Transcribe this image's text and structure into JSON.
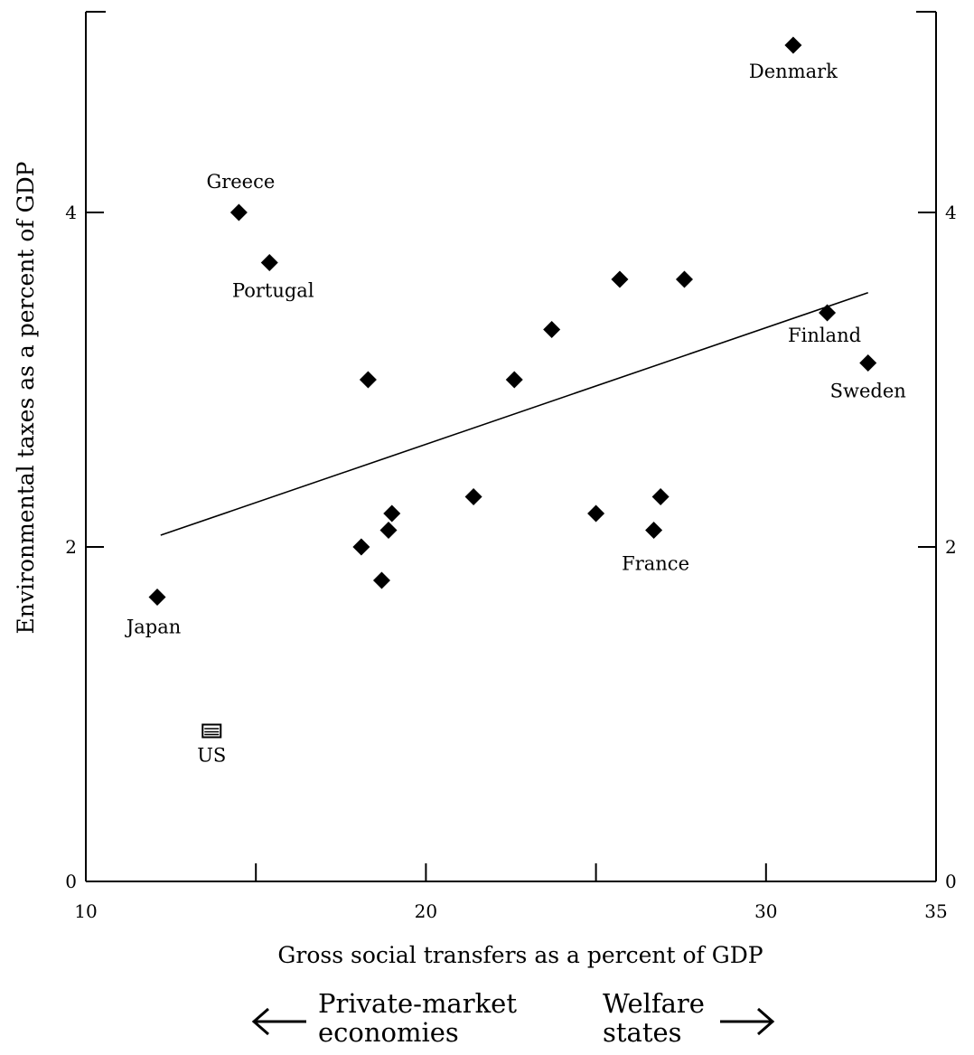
{
  "chart_data": {
    "type": "scatter",
    "title": "",
    "xlabel": "Gross social transfers as a percent of GDP",
    "ylabel": "Environmental taxes as a percent of GDP",
    "xlim": [
      10,
      35
    ],
    "ylim": [
      0,
      5.2
    ],
    "x_ticks": [
      10,
      20,
      30,
      35
    ],
    "x_minor_ticks": [
      15,
      25
    ],
    "y_ticks": [
      0,
      2,
      4
    ],
    "points": [
      {
        "x": 12.1,
        "y": 1.7,
        "label": "Japan"
      },
      {
        "x": 13.7,
        "y": 0.9,
        "label": "US"
      },
      {
        "x": 14.5,
        "y": 4.0,
        "label": "Greece"
      },
      {
        "x": 15.4,
        "y": 3.7,
        "label": "Portugal"
      },
      {
        "x": 18.1,
        "y": 2.0,
        "label": ""
      },
      {
        "x": 18.3,
        "y": 3.0,
        "label": ""
      },
      {
        "x": 18.7,
        "y": 1.8,
        "label": ""
      },
      {
        "x": 18.9,
        "y": 2.1,
        "label": ""
      },
      {
        "x": 19.0,
        "y": 2.2,
        "label": ""
      },
      {
        "x": 21.4,
        "y": 2.3,
        "label": ""
      },
      {
        "x": 22.6,
        "y": 3.0,
        "label": ""
      },
      {
        "x": 23.7,
        "y": 3.3,
        "label": ""
      },
      {
        "x": 25.0,
        "y": 2.2,
        "label": ""
      },
      {
        "x": 25.7,
        "y": 3.6,
        "label": ""
      },
      {
        "x": 26.7,
        "y": 2.1,
        "label": "France"
      },
      {
        "x": 26.9,
        "y": 2.3,
        "label": ""
      },
      {
        "x": 27.6,
        "y": 3.6,
        "label": ""
      },
      {
        "x": 30.8,
        "y": 5.0,
        "label": "Denmark"
      },
      {
        "x": 31.8,
        "y": 3.4,
        "label": "Finland"
      },
      {
        "x": 33.0,
        "y": 3.1,
        "label": "Sweden"
      }
    ],
    "trendline": {
      "x": [
        12.2,
        33.0
      ],
      "y": [
        2.07,
        3.52
      ]
    },
    "grid": false,
    "legend": "none",
    "marker_color": "#000000"
  },
  "footer": {
    "left_label": "Private-market\neconomies",
    "right_label": "Welfare\nstates",
    "left_arrow_icon": "arrow-left-icon",
    "right_arrow_icon": "arrow-right-icon"
  }
}
